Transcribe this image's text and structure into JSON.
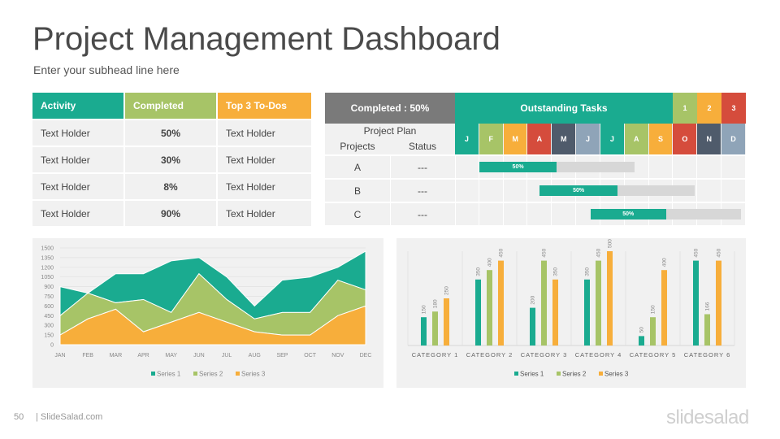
{
  "header": {
    "title": "Project Management Dashboard",
    "subhead": "Enter your subhead line here"
  },
  "activity_table": {
    "headers": [
      "Activity",
      "Completed",
      "Top 3 To-Dos"
    ],
    "header_colors": [
      "#1aab90",
      "#a7c467",
      "#f7ae3b"
    ],
    "rows": [
      [
        "Text Holder",
        "50%",
        "Text Holder"
      ],
      [
        "Text Holder",
        "30%",
        "Text Holder"
      ],
      [
        "Text Holder",
        "8%",
        "Text Holder"
      ],
      [
        "Text Holder",
        "90%",
        "Text Holder"
      ]
    ]
  },
  "gantt": {
    "completed_label": "Completed : 50%",
    "outstanding_label": "Outstanding Tasks",
    "legend": [
      "1",
      "2",
      "3"
    ],
    "legend_colors": [
      "#a7c467",
      "#f7ae3b",
      "#d54c3c"
    ],
    "plan_label": "Project Plan",
    "col_projects": "Projects",
    "col_status": "Status",
    "months": [
      "J",
      "F",
      "M",
      "A",
      "M",
      "J",
      "J",
      "A",
      "S",
      "O",
      "N",
      "D"
    ],
    "month_colors": [
      "#1aab90",
      "#a7c467",
      "#f7ae3b",
      "#d54c3c",
      "#4f5b6b",
      "#8fa4b8",
      "#1aab90",
      "#a7c467",
      "#f7ae3b",
      "#d54c3c",
      "#4f5b6b",
      "#8fa4b8"
    ],
    "rows": [
      {
        "project": "A",
        "status": "---",
        "progress": 50,
        "progress_label": "50%",
        "start_month": 1,
        "span_months": 6.4
      },
      {
        "project": "B",
        "status": "---",
        "progress": 50,
        "progress_label": "50%",
        "start_month": 3.5,
        "span_months": 6.4
      },
      {
        "project": "C",
        "status": "---",
        "progress": 50,
        "progress_label": "50%",
        "start_month": 5.6,
        "span_months": 6.2
      }
    ]
  },
  "chart_data": [
    {
      "type": "area",
      "categories": [
        "JAN",
        "FEB",
        "MAR",
        "APR",
        "MAY",
        "JUN",
        "JUL",
        "AUG",
        "SEP",
        "OCT",
        "NOV",
        "DEC"
      ],
      "stacked": true,
      "series": [
        {
          "name": "Series 1",
          "color": "#1aab90",
          "values": [
            450,
            0,
            450,
            400,
            800,
            250,
            350,
            200,
            500,
            550,
            200,
            600
          ]
        },
        {
          "name": "Series 2",
          "color": "#a7c467",
          "values": [
            300,
            400,
            100,
            500,
            150,
            600,
            350,
            200,
            350,
            350,
            550,
            250
          ]
        },
        {
          "name": "Series 3",
          "color": "#f7ae3b",
          "values": [
            150,
            400,
            550,
            200,
            350,
            500,
            350,
            200,
            150,
            150,
            450,
            600
          ]
        }
      ],
      "yticks": [
        "1500",
        "1350",
        "1200",
        "1050",
        "900",
        "750",
        "600",
        "450",
        "300",
        "150",
        "0"
      ],
      "ylim": [
        0,
        1500
      ],
      "legend_position": "bottom"
    },
    {
      "type": "bar",
      "categories": [
        "CATEGORY 1",
        "CATEGORY 2",
        "CATEGORY 3",
        "CATEGORY 4",
        "CATEGORY 5",
        "CATEGORY 6"
      ],
      "series": [
        {
          "name": "Series 1",
          "color": "#1aab90",
          "values": [
            150,
            350,
            200,
            350,
            50,
            450
          ],
          "labels": [
            "150",
            "350",
            "200",
            "350",
            "50",
            "450"
          ]
        },
        {
          "name": "Series 2",
          "color": "#a7c467",
          "values": [
            180,
            400,
            450,
            450,
            150,
            166
          ],
          "labels": [
            "180",
            "400",
            "450",
            "450",
            "150",
            "166"
          ]
        },
        {
          "name": "Series 3",
          "color": "#f7ae3b",
          "values": [
            250,
            450,
            350,
            500,
            400,
            450
          ],
          "labels": [
            "250",
            "450",
            "350",
            "500",
            "400",
            "450"
          ]
        }
      ],
      "ylim": [
        0,
        500
      ],
      "legend_position": "bottom"
    }
  ],
  "footer": {
    "page": "50",
    "site": "| SlideSalad.com",
    "brand": "slidesalad"
  }
}
